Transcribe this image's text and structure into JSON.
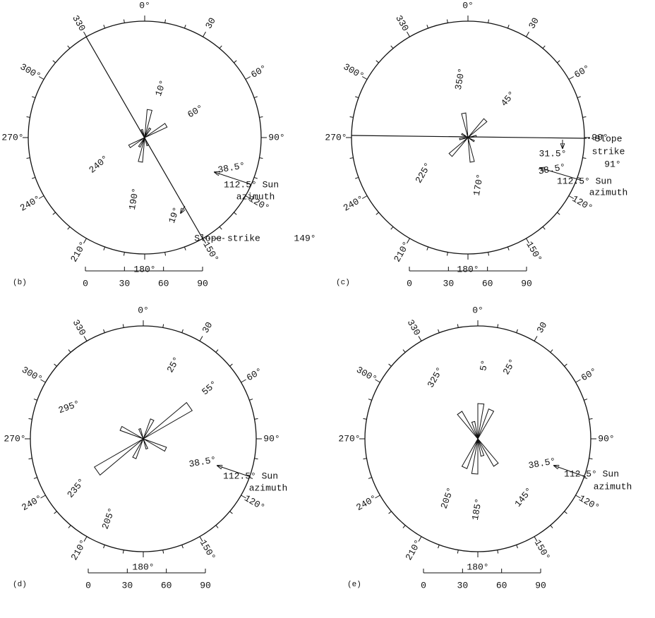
{
  "panels": [
    {
      "label": "(b)",
      "ring_labels": [
        "0°",
        "30",
        "60°",
        "90°",
        "120°",
        "150°",
        "180°",
        "210°",
        "240°",
        "270°",
        "300°",
        "330"
      ],
      "scale": [
        "0",
        "30",
        "60",
        "90"
      ],
      "annotations": [
        "10°",
        "60°",
        "240°",
        "190°",
        "38.5°",
        "112.5° Sun",
        "azimuth",
        "19°",
        "Slope strike",
        "149°"
      ]
    },
    {
      "label": "(c)",
      "ring_labels": [
        "0°",
        "30",
        "60°",
        "90°",
        "120°",
        "150°",
        "180°",
        "210°",
        "240°",
        "270°",
        "300°",
        "330"
      ],
      "scale": [
        "0",
        "30",
        "60",
        "90"
      ],
      "annotations": [
        "350°",
        "45°",
        "225°",
        "170°",
        "Slope",
        "strike",
        "91°",
        "31.5°",
        "38.5°",
        "112.5° Sun",
        "azimuth"
      ]
    },
    {
      "label": "(d)",
      "ring_labels": [
        "0°",
        "30",
        "60°",
        "90°",
        "120°",
        "150°",
        "180°",
        "210°",
        "240°",
        "270°",
        "300°",
        "330"
      ],
      "scale": [
        "0",
        "30",
        "60",
        "90"
      ],
      "annotations": [
        "25°",
        "55°",
        "295°",
        "235°",
        "205°",
        "38.5°",
        "112.5° Sun",
        "azimuth"
      ]
    },
    {
      "label": "(e)",
      "ring_labels": [
        "0°",
        "30",
        "60°",
        "90°",
        "120°",
        "150°",
        "180°",
        "210°",
        "240°",
        "270°",
        "300°",
        "330"
      ],
      "scale": [
        "0",
        "30",
        "60",
        "90"
      ],
      "annotations": [
        "325°",
        "5°",
        "25°",
        "205°",
        "185°",
        "145°",
        "38.5°",
        "112.5° Sun",
        "azimuth"
      ]
    }
  ]
}
